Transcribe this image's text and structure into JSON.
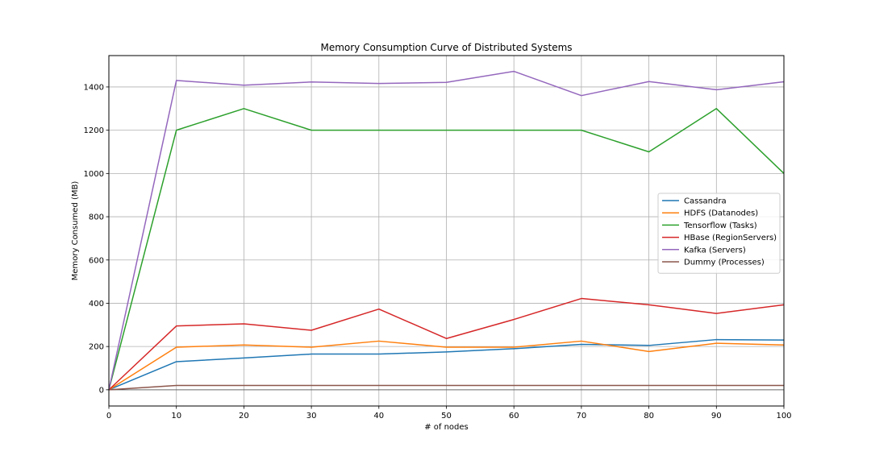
{
  "chart_data": {
    "type": "line",
    "title": "Memory Consumption Curve of Distributed Systems",
    "xlabel": "# of nodes",
    "ylabel": "Memory Consumed (MB)",
    "xlim": [
      0,
      100
    ],
    "ylim": [
      -75,
      1545
    ],
    "xticks": [
      0,
      10,
      20,
      30,
      40,
      50,
      60,
      70,
      80,
      90,
      100
    ],
    "yticks": [
      0,
      200,
      400,
      600,
      800,
      1000,
      1200,
      1400
    ],
    "grid": true,
    "legend_position": "center-right",
    "x": [
      0,
      10,
      20,
      30,
      40,
      50,
      60,
      70,
      80,
      90,
      100
    ],
    "series": [
      {
        "name": "Cassandra",
        "color": "#1f77b4",
        "values": [
          0,
          130,
          147,
          165,
          165,
          175,
          190,
          210,
          205,
          232,
          230
        ]
      },
      {
        "name": "HDFS (Datanodes)",
        "color": "#ff7f0e",
        "values": [
          0,
          197,
          207,
          197,
          225,
          197,
          197,
          225,
          177,
          215,
          207
        ]
      },
      {
        "name": "Tensorflow (Tasks)",
        "color": "#2ca02c",
        "values": [
          0,
          1200,
          1300,
          1200,
          1200,
          1200,
          1200,
          1200,
          1100,
          1300,
          1000
        ]
      },
      {
        "name": "HBase (RegionServers)",
        "color": "#d62728",
        "values": [
          0,
          295,
          305,
          275,
          373,
          237,
          325,
          422,
          393,
          353,
          393
        ]
      },
      {
        "name": "Kafka (Servers)",
        "color": "#9467bd",
        "values": [
          0,
          1430,
          1408,
          1423,
          1416,
          1421,
          1472,
          1360,
          1425,
          1387,
          1424
        ]
      },
      {
        "name": "Dummy (Processes)",
        "color": "#8c564b",
        "values": [
          0,
          20,
          20,
          20,
          20,
          20,
          20,
          20,
          20,
          20,
          20
        ]
      }
    ]
  }
}
